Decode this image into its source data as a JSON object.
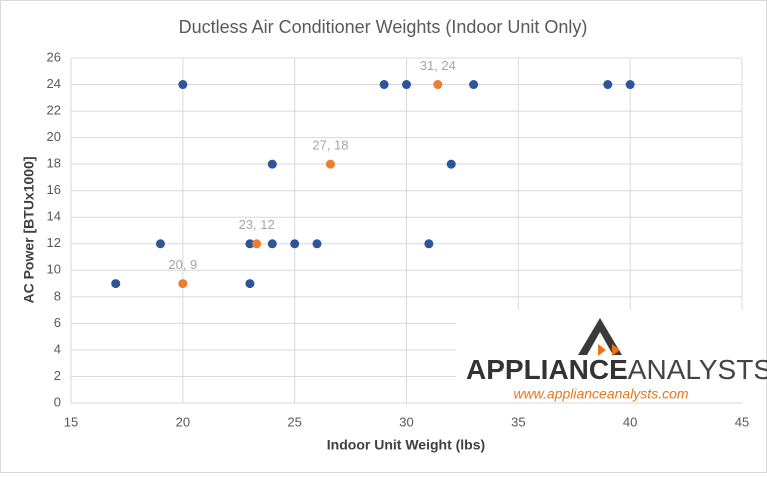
{
  "chart_data": {
    "type": "scatter",
    "title": "Ductless Air Conditioner Weights (Indoor Unit Only)",
    "x_label": "Indoor Unit Weight (lbs)",
    "y_label": "AC Power [BTUx1000]",
    "xlim": [
      15,
      45
    ],
    "xticks": [
      15,
      20,
      25,
      30,
      35,
      40,
      45
    ],
    "ylim": [
      0,
      26
    ],
    "yticks": [
      0,
      2,
      4,
      6,
      8,
      10,
      12,
      14,
      16,
      18,
      20,
      22,
      24,
      26
    ],
    "grid": true,
    "series": [
      {
        "color": "#2e5597",
        "x": [
          17,
          19,
          20,
          23,
          23,
          24,
          24,
          25,
          26,
          29,
          30,
          31,
          32,
          33,
          39,
          40
        ],
        "values": [
          9,
          12,
          24,
          12,
          9,
          18,
          12,
          12,
          12,
          24,
          24,
          12,
          18,
          24,
          24,
          24
        ]
      },
      {
        "color": "#ed7d31",
        "x": [
          20,
          23.3,
          26.6,
          31.4
        ],
        "values": [
          9,
          12,
          18,
          24
        ],
        "value_labels": [
          "20, 9",
          "23, 12",
          "27, 18",
          "31, 24"
        ]
      }
    ],
    "watermark": {
      "brand_bold": "APPLIANCE",
      "brand_light": "ANALYSTS",
      "url": "www.applianceanalysts.com"
    }
  }
}
